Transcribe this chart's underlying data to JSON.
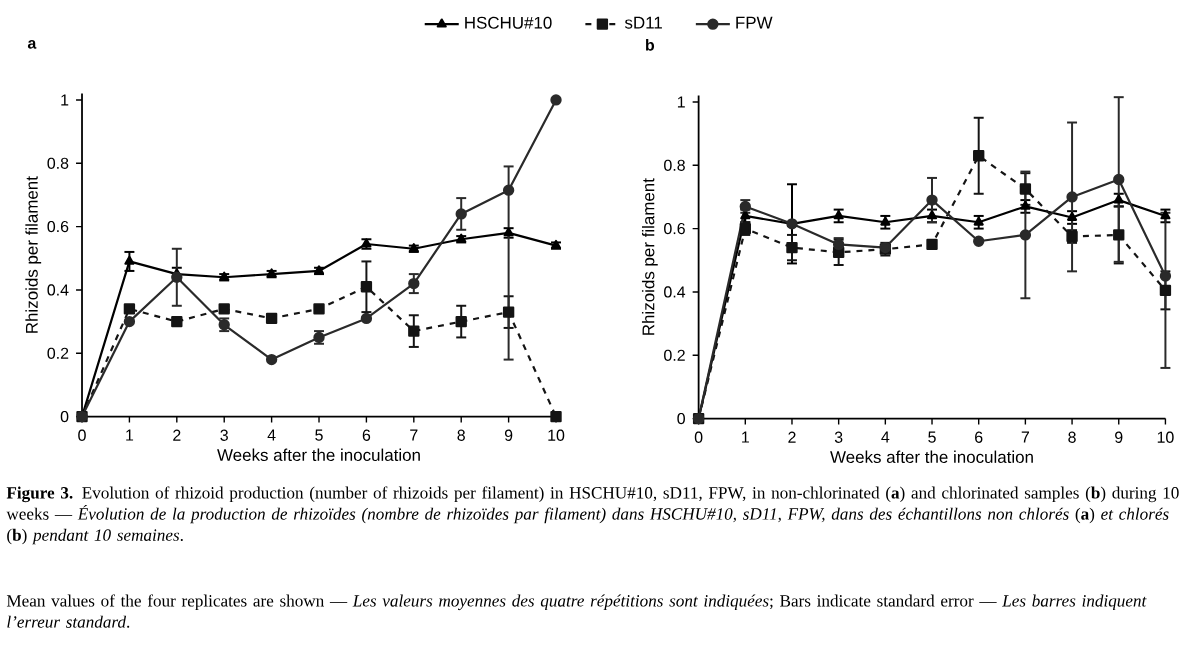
{
  "chart_data": [
    {
      "type": "line",
      "title": "a",
      "xlabel": "Weeks after the inoculation",
      "ylabel": "Rhizoids per filament",
      "x": [
        0,
        1,
        2,
        3,
        4,
        5,
        6,
        7,
        8,
        9,
        10
      ],
      "xlim": [
        0,
        10
      ],
      "ylim": [
        0,
        1.02
      ],
      "xticks": [
        0,
        1,
        2,
        3,
        4,
        5,
        6,
        7,
        8,
        9,
        10
      ],
      "yticks": [
        0,
        0.2,
        0.4,
        0.6,
        0.8,
        1
      ],
      "legend": "top",
      "grid": false,
      "series": [
        {
          "name": "HSCHU#10",
          "color": "#000000",
          "marker": "triangle",
          "line_style": "solid",
          "values": [
            0,
            0.49,
            0.45,
            0.44,
            0.45,
            0.46,
            0.545,
            0.53,
            0.56,
            0.58,
            0.54
          ],
          "errors": [
            null,
            0.03,
            0.02,
            0.01,
            0.01,
            0.01,
            0.015,
            0.01,
            0.01,
            0.015,
            0.01
          ]
        },
        {
          "name": "sD11",
          "color": "#141414",
          "marker": "square",
          "line_style": "dashed",
          "values": [
            0,
            0.34,
            0.3,
            0.34,
            0.31,
            0.34,
            0.41,
            0.27,
            0.3,
            0.33,
            0
          ],
          "errors": [
            null,
            0.01,
            null,
            0.01,
            null,
            0.01,
            0.08,
            0.05,
            0.05,
            0.05,
            null
          ]
        },
        {
          "name": "FPW",
          "color": "#2a2a2a",
          "marker": "circle",
          "line_style": "solid",
          "values": [
            0,
            0.3,
            0.44,
            0.29,
            0.18,
            0.25,
            0.31,
            0.42,
            0.64,
            0.715,
            1.0
          ],
          "errors": [
            null,
            null,
            0.09,
            0.02,
            null,
            0.02,
            null,
            0.03,
            0.05,
            [
              0.18,
              0.79
            ],
            null
          ]
        }
      ],
      "annotations": [
        "**Figure 3.** Evolution of rhizoid production (number of rhizoids per filament) in HSCHU#10, sD11, FPW, in non-chlorinated (**a**) and chlorinated samples (**b**) during 10 weeks — *Évolution de la production de rhizoïdes (nombre de rhizoïdes par filament) dans HSCHU#10, sD11, FPW, dans des échantillons non chlorés* (**a**) *et chlorés* (**b**) *pendant 10 semaines*.",
        "Mean values of the four replicates are shown — *Les valeurs moyennes des quatre répétitions sont indiquées*; Bars indicate standard error — *Les barres indiquent l’erreur standard*."
      ]
    },
    {
      "type": "line",
      "title": "b",
      "xlabel": "Weeks after the inoculation",
      "ylabel": "Rhizoids per filament",
      "x": [
        0,
        1,
        2,
        3,
        4,
        5,
        6,
        7,
        8,
        9,
        10
      ],
      "xlim": [
        0,
        10
      ],
      "ylim": [
        0,
        1.02
      ],
      "xticks": [
        0,
        1,
        2,
        3,
        4,
        5,
        6,
        7,
        8,
        9,
        10
      ],
      "yticks": [
        0,
        0.2,
        0.4,
        0.6,
        0.8,
        1
      ],
      "grid": false,
      "series": [
        {
          "color": "#000000",
          "marker": "triangle",
          "line_style": "solid",
          "values": [
            0,
            0.64,
            0.615,
            0.64,
            0.62,
            0.64,
            0.62,
            0.67,
            0.635,
            0.69,
            0.64
          ],
          "errors": [
            null,
            0.02,
            0.125,
            0.02,
            0.02,
            0.02,
            0.02,
            0.02,
            0.02,
            0.02,
            0.02
          ]
        },
        {
          "color": "#141414",
          "marker": "square",
          "line_style": "dashed",
          "values": [
            0,
            0.6,
            0.54,
            0.525,
            0.535,
            0.55,
            0.83,
            0.725,
            0.575,
            0.58,
            0.405
          ],
          "errors": [
            null,
            0.02,
            0.04,
            0.04,
            0.02,
            0.01,
            0.12,
            0.05,
            0.02,
            0.09,
            0.06
          ]
        },
        {
          "color": "#2a2a2a",
          "marker": "circle",
          "line_style": "solid",
          "values": [
            0,
            0.67,
            0.615,
            0.55,
            0.54,
            0.69,
            0.56,
            0.58,
            0.7,
            0.755,
            0.45
          ],
          "errors": [
            null,
            0.02,
            null,
            0.02,
            null,
            0.07,
            null,
            0.2,
            0.235,
            0.26,
            [
              0.16,
              0.65
            ]
          ]
        }
      ]
    }
  ]
}
